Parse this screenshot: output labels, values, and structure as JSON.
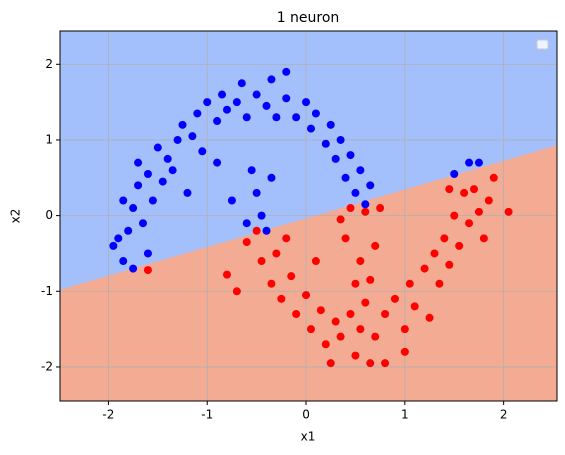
{
  "chart_data": {
    "type": "scatter",
    "title": "1 neuron",
    "x_label": "x1",
    "y_label": "x2",
    "xlim": [
      -2.49,
      2.54
    ],
    "ylim": [
      -2.45,
      2.44
    ],
    "xticks": [
      -2,
      -1,
      0,
      1,
      2
    ],
    "yticks": [
      -2,
      -1,
      0,
      1,
      2
    ],
    "grid": true,
    "regions": {
      "above_color": "#a4c0fc",
      "below_color": "#f4ab93",
      "boundary": {
        "x": [
          -2.49,
          2.54
        ],
        "y": [
          -0.98,
          0.93
        ]
      }
    },
    "legend": "upper right",
    "series": [
      {
        "color": "#0000ff",
        "x": [
          -1.95,
          -1.85,
          -1.8,
          -1.75,
          -1.85,
          -1.7,
          -1.6,
          -1.65,
          -1.55,
          -1.7,
          -1.6,
          -1.5,
          -1.45,
          -1.4,
          -1.3,
          -1.35,
          -1.25,
          -1.15,
          -1.1,
          -1.05,
          -1.0,
          -0.9,
          -0.85,
          -0.8,
          -0.7,
          -0.65,
          -0.6,
          -0.5,
          -0.4,
          -0.35,
          -0.3,
          -0.2,
          -0.2,
          -0.1,
          0.0,
          0.05,
          0.1,
          0.2,
          0.25,
          0.3,
          0.35,
          0.4,
          0.45,
          0.5,
          0.55,
          0.6,
          0.65,
          -0.55,
          -0.5,
          -0.45,
          -0.6,
          -0.4,
          -0.35,
          -0.9,
          -1.2,
          1.5,
          1.65,
          1.75,
          -1.75,
          -1.9,
          -0.75
        ],
        "y": [
          -0.4,
          -0.6,
          -0.2,
          0.1,
          0.2,
          0.4,
          -0.5,
          -0.1,
          0.2,
          0.7,
          0.55,
          0.9,
          0.45,
          0.75,
          1.0,
          0.6,
          1.2,
          1.05,
          1.35,
          0.85,
          1.5,
          1.25,
          1.6,
          1.4,
          1.5,
          1.75,
          1.3,
          1.6,
          1.45,
          1.8,
          1.3,
          1.55,
          1.9,
          1.3,
          1.5,
          1.15,
          1.35,
          0.95,
          1.2,
          0.75,
          1.0,
          0.5,
          0.8,
          0.3,
          0.6,
          0.15,
          0.4,
          0.6,
          0.3,
          0.0,
          -0.1,
          -0.2,
          0.5,
          0.7,
          0.3,
          0.55,
          0.7,
          0.7,
          -0.7,
          -0.3,
          0.2
        ]
      },
      {
        "color": "#ff0000",
        "x": [
          -0.8,
          -1.6,
          -0.6,
          -0.5,
          -0.45,
          -0.35,
          -0.3,
          -0.25,
          -0.15,
          -0.1,
          0.0,
          0.05,
          0.15,
          0.2,
          0.3,
          0.35,
          0.45,
          0.5,
          0.55,
          0.6,
          0.7,
          0.8,
          0.8,
          0.9,
          1.0,
          1.05,
          1.1,
          1.2,
          1.25,
          1.3,
          1.35,
          1.4,
          1.45,
          1.5,
          1.55,
          1.6,
          1.65,
          1.7,
          1.75,
          1.8,
          1.85,
          2.05,
          1.9,
          1.45,
          0.4,
          0.45,
          0.55,
          0.6,
          0.7,
          0.5,
          0.65,
          -0.2,
          0.1,
          0.35,
          0.75,
          1.0,
          -0.7,
          0.25,
          0.65
        ],
        "y": [
          -0.78,
          -0.72,
          -0.35,
          -0.2,
          -0.6,
          -0.9,
          -0.5,
          -1.1,
          -0.8,
          -1.3,
          -1.05,
          -1.5,
          -1.25,
          -1.7,
          -1.4,
          -1.6,
          -1.3,
          -1.85,
          -1.5,
          -1.15,
          -1.6,
          -1.95,
          -1.3,
          -1.1,
          -1.5,
          -0.9,
          -1.2,
          -0.7,
          -1.35,
          -0.5,
          -0.9,
          -0.3,
          -0.65,
          0.0,
          -0.4,
          0.3,
          -0.1,
          0.35,
          0.05,
          -0.3,
          0.2,
          0.05,
          0.5,
          0.35,
          -0.3,
          0.1,
          -0.6,
          0.05,
          -0.4,
          -0.9,
          -0.85,
          -0.3,
          -0.6,
          -0.05,
          0.1,
          -1.8,
          -1.0,
          -1.95,
          -1.95
        ]
      }
    ]
  }
}
